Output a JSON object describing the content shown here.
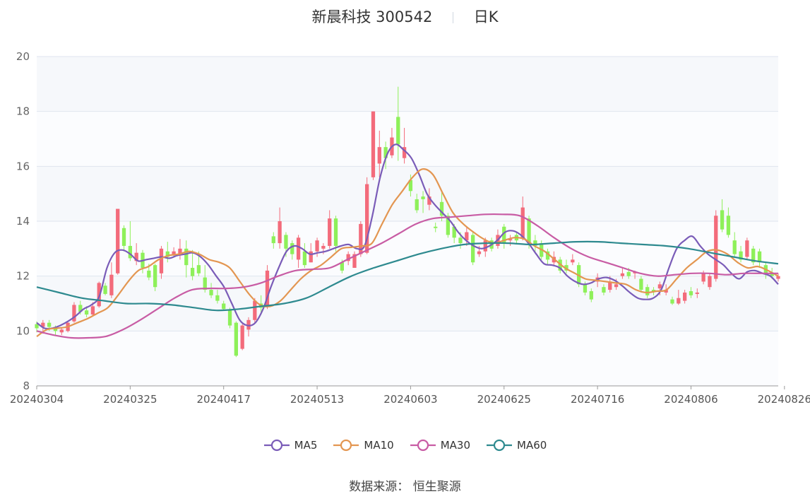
{
  "header": {
    "title": "新晨科技 300542",
    "period": "日K"
  },
  "source": "数据来源： 恒生聚源",
  "chart_data": {
    "type": "candlestick",
    "title": "新晨科技 300542",
    "ylim": [
      8,
      20
    ],
    "y_ticks": [
      8,
      10,
      12,
      14,
      16,
      18,
      20
    ],
    "x_ticks": [
      {
        "i": 0,
        "label": "20240304"
      },
      {
        "i": 15,
        "label": "20240325"
      },
      {
        "i": 30,
        "label": "20240417"
      },
      {
        "i": 45,
        "label": "20240513"
      },
      {
        "i": 60,
        "label": "20240603"
      },
      {
        "i": 75,
        "label": "20240625"
      },
      {
        "i": 90,
        "label": "20240716"
      },
      {
        "i": 105,
        "label": "20240806"
      },
      {
        "i": 120,
        "label": "20240826"
      }
    ],
    "grid": true,
    "legend_position": "bottom",
    "colors": {
      "up": "#f36b7b",
      "down": "#8ef05a",
      "plot_bg": "#f6f8fb",
      "grid": "#dfe5ef"
    },
    "candles": [
      [
        10.25,
        10.1,
        10.35,
        9.95
      ],
      [
        10.15,
        10.3,
        10.4,
        9.9
      ],
      [
        10.3,
        10.15,
        10.4,
        10.0
      ],
      [
        10.15,
        10.0,
        10.2,
        9.85
      ],
      [
        9.95,
        10.05,
        10.1,
        9.85
      ],
      [
        10.0,
        10.3,
        10.35,
        9.95
      ],
      [
        10.35,
        10.95,
        11.05,
        10.3
      ],
      [
        10.95,
        10.7,
        11.1,
        10.6
      ],
      [
        10.75,
        10.6,
        10.9,
        10.5
      ],
      [
        10.6,
        10.9,
        11.05,
        10.55
      ],
      [
        10.9,
        11.75,
        11.8,
        10.85
      ],
      [
        11.65,
        11.35,
        11.75,
        11.3
      ],
      [
        11.3,
        12.05,
        12.5,
        11.2
      ],
      [
        12.1,
        14.45,
        14.45,
        12.05
      ],
      [
        13.75,
        13.1,
        13.85,
        12.9
      ],
      [
        13.1,
        12.65,
        14.0,
        12.55
      ],
      [
        12.55,
        12.85,
        13.2,
        12.4
      ],
      [
        12.85,
        12.3,
        12.95,
        12.1
      ],
      [
        12.2,
        11.95,
        12.45,
        11.85
      ],
      [
        12.4,
        11.6,
        12.45,
        11.45
      ],
      [
        12.1,
        13.0,
        13.1,
        11.9
      ],
      [
        12.9,
        12.7,
        13.25,
        12.5
      ],
      [
        12.8,
        12.9,
        13.05,
        12.7
      ],
      [
        12.75,
        13.0,
        13.35,
        12.6
      ],
      [
        13.0,
        12.4,
        13.3,
        11.95
      ],
      [
        12.3,
        12.0,
        12.95,
        11.85
      ],
      [
        12.4,
        12.1,
        12.9,
        12.0
      ],
      [
        11.95,
        11.5,
        12.4,
        11.4
      ],
      [
        11.5,
        11.3,
        11.75,
        11.2
      ],
      [
        11.3,
        11.1,
        11.5,
        11.0
      ],
      [
        11.0,
        10.8,
        11.1,
        10.75
      ],
      [
        10.75,
        10.2,
        10.85,
        10.1
      ],
      [
        10.3,
        9.1,
        10.35,
        9.05
      ],
      [
        9.35,
        10.2,
        10.25,
        9.3
      ],
      [
        10.05,
        10.4,
        10.5,
        9.8
      ],
      [
        10.4,
        11.1,
        11.2,
        10.3
      ],
      [
        11.0,
        10.85,
        11.3,
        10.6
      ],
      [
        10.9,
        12.2,
        12.4,
        10.8
      ],
      [
        13.45,
        13.2,
        13.6,
        13.0
      ],
      [
        13.2,
        14.0,
        14.5,
        13.0
      ],
      [
        13.5,
        13.0,
        13.6,
        12.7
      ],
      [
        13.2,
        12.8,
        13.3,
        12.6
      ],
      [
        12.6,
        13.4,
        13.5,
        12.3
      ],
      [
        12.9,
        12.4,
        13.2,
        12.3
      ],
      [
        12.5,
        12.9,
        13.2,
        12.5
      ],
      [
        12.9,
        13.3,
        13.4,
        12.7
      ],
      [
        13.0,
        13.1,
        13.2,
        12.8
      ],
      [
        13.1,
        14.1,
        14.4,
        13.0
      ],
      [
        14.1,
        13.1,
        14.2,
        12.9
      ],
      [
        12.5,
        12.2,
        12.6,
        12.1
      ],
      [
        12.55,
        12.8,
        12.9,
        12.4
      ],
      [
        12.3,
        12.8,
        12.9,
        12.3
      ],
      [
        12.8,
        13.9,
        14.0,
        12.7
      ],
      [
        12.85,
        15.35,
        15.6,
        12.8
      ],
      [
        15.6,
        18.0,
        18.0,
        15.5
      ],
      [
        16.1,
        16.7,
        17.3,
        15.6
      ],
      [
        16.7,
        16.3,
        16.9,
        15.9
      ],
      [
        16.4,
        17.05,
        17.4,
        16.3
      ],
      [
        17.8,
        16.8,
        18.9,
        16.2
      ],
      [
        16.3,
        16.7,
        17.4,
        16.1
      ],
      [
        15.5,
        15.1,
        15.7,
        14.9
      ],
      [
        14.8,
        14.4,
        15.0,
        14.3
      ],
      [
        14.9,
        14.8,
        15.1,
        14.3
      ],
      [
        14.6,
        14.9,
        15.2,
        14.4
      ],
      [
        13.8,
        13.75,
        13.95,
        13.6
      ],
      [
        14.7,
        14.2,
        15.1,
        14.0
      ],
      [
        14.2,
        13.5,
        14.3,
        13.4
      ],
      [
        13.8,
        13.4,
        13.9,
        13.2
      ],
      [
        13.4,
        13.2,
        13.6,
        13.0
      ],
      [
        13.3,
        13.6,
        13.8,
        13.1
      ],
      [
        13.5,
        12.5,
        13.6,
        12.4
      ],
      [
        12.8,
        12.9,
        13.1,
        12.7
      ],
      [
        12.9,
        13.3,
        13.4,
        12.7
      ],
      [
        13.3,
        13.0,
        13.4,
        12.9
      ],
      [
        13.1,
        13.5,
        13.7,
        13.0
      ],
      [
        13.8,
        13.2,
        13.9,
        13.0
      ],
      [
        13.3,
        13.35,
        13.5,
        13.1
      ],
      [
        13.5,
        13.3,
        13.6,
        13.2
      ],
      [
        13.4,
        14.5,
        14.9,
        13.3
      ],
      [
        14.1,
        13.2,
        14.2,
        13.0
      ],
      [
        13.3,
        13.1,
        13.5,
        12.9
      ],
      [
        13.2,
        12.7,
        13.3,
        12.6
      ],
      [
        12.9,
        12.6,
        13.0,
        12.4
      ],
      [
        12.5,
        12.7,
        12.9,
        12.4
      ],
      [
        12.6,
        12.2,
        12.7,
        12.1
      ],
      [
        12.4,
        12.2,
        12.6,
        12.1
      ],
      [
        12.5,
        12.6,
        12.8,
        12.4
      ],
      [
        12.4,
        11.7,
        12.5,
        11.6
      ],
      [
        11.7,
        11.4,
        11.8,
        11.3
      ],
      [
        11.45,
        11.15,
        11.55,
        11.05
      ],
      [
        11.8,
        11.95,
        12.1,
        11.6
      ],
      [
        11.6,
        11.4,
        11.7,
        11.3
      ],
      [
        11.5,
        11.8,
        12.0,
        11.4
      ],
      [
        11.6,
        11.7,
        11.9,
        11.5
      ],
      [
        12.0,
        12.1,
        12.3,
        11.9
      ],
      [
        12.15,
        12.0,
        12.3,
        11.9
      ],
      [
        12.1,
        12.15,
        12.2,
        11.9
      ],
      [
        11.9,
        11.5,
        12.0,
        11.4
      ],
      [
        11.6,
        11.3,
        11.7,
        11.2
      ],
      [
        11.5,
        11.45,
        11.6,
        11.3
      ],
      [
        11.55,
        11.7,
        11.8,
        11.3
      ],
      [
        11.4,
        11.5,
        11.7,
        11.3
      ],
      [
        11.15,
        11.0,
        11.25,
        10.95
      ],
      [
        11.0,
        11.2,
        11.5,
        10.95
      ],
      [
        11.1,
        11.4,
        11.5,
        11.0
      ],
      [
        11.45,
        11.3,
        11.6,
        11.2
      ],
      [
        11.35,
        11.4,
        11.55,
        11.2
      ],
      [
        11.8,
        12.1,
        12.2,
        11.7
      ],
      [
        11.6,
        12.0,
        12.1,
        11.5
      ],
      [
        11.9,
        14.2,
        14.4,
        11.8
      ],
      [
        14.4,
        13.7,
        14.8,
        13.6
      ],
      [
        14.2,
        13.5,
        14.5,
        13.4
      ],
      [
        13.3,
        12.8,
        13.6,
        12.7
      ],
      [
        12.9,
        12.6,
        13.1,
        12.5
      ],
      [
        12.7,
        13.3,
        13.4,
        12.6
      ],
      [
        13.0,
        12.5,
        13.1,
        12.4
      ],
      [
        12.9,
        12.5,
        13.0,
        12.3
      ],
      [
        12.4,
        12.1,
        12.5,
        11.9
      ],
      [
        12.1,
        12.0,
        12.3,
        11.9
      ],
      [
        11.9,
        12.0,
        12.1,
        11.8
      ]
    ],
    "series": [
      {
        "name": "MA5",
        "color": "#7a5cb8",
        "values": [
          10.3,
          10.1,
          10.1,
          10.2,
          10.35,
          10.55,
          10.8,
          10.95,
          11.25,
          12.3,
          12.85,
          12.95,
          12.8,
          12.55,
          12.6,
          12.65,
          12.7,
          12.65,
          12.75,
          12.8,
          12.85,
          12.7,
          12.4,
          12.0,
          11.6,
          11.0,
          10.4,
          10.2,
          10.3,
          10.8,
          11.6,
          12.3,
          12.9,
          13.1,
          13.0,
          12.8,
          12.85,
          12.9,
          13.0,
          13.1,
          13.15,
          13.0,
          13.1,
          14.2,
          15.6,
          16.5,
          16.8,
          16.6,
          16.3,
          15.7,
          15.0,
          14.6,
          14.3,
          14.0,
          13.6,
          13.3,
          13.1,
          13.0,
          13.1,
          13.3,
          13.6,
          13.65,
          13.5,
          13.2,
          12.8,
          12.45,
          12.4,
          12.3,
          12.0,
          11.8,
          11.7,
          11.75,
          11.9,
          11.95,
          11.85,
          11.65,
          11.4,
          11.2,
          11.15,
          11.2,
          11.5,
          12.3,
          13.0,
          13.3,
          13.45,
          13.1,
          12.8,
          12.6,
          12.4,
          12.1,
          11.9,
          12.15,
          12.2,
          12.1,
          12.0,
          11.7
        ]
      },
      {
        "name": "MA10",
        "color": "#e39651",
        "values": [
          9.8,
          10.05,
          10.1,
          10.15,
          10.3,
          10.45,
          10.65,
          10.85,
          11.3,
          11.8,
          12.2,
          12.35,
          12.6,
          12.75,
          12.8,
          12.9,
          12.8,
          12.6,
          12.5,
          12.3,
          11.8,
          11.3,
          10.95,
          10.9,
          11.1,
          11.5,
          11.9,
          12.2,
          12.4,
          12.7,
          13.0,
          13.05,
          13.1,
          13.2,
          13.9,
          14.6,
          15.1,
          15.6,
          15.9,
          15.7,
          15.0,
          14.3,
          13.9,
          13.6,
          13.35,
          13.2,
          13.3,
          13.4,
          13.35,
          13.1,
          12.9,
          12.6,
          12.3,
          12.1,
          11.9,
          11.85,
          11.8,
          11.75,
          11.7,
          11.5,
          11.4,
          11.45,
          11.5,
          11.9,
          12.3,
          12.6,
          12.9,
          12.95,
          12.8,
          12.5,
          12.3,
          12.35,
          12.2,
          12.0
        ]
      },
      {
        "name": "MA30",
        "color": "#c85ca4",
        "values": [
          10.0,
          9.85,
          9.75,
          9.75,
          9.8,
          10.05,
          10.4,
          10.8,
          11.2,
          11.5,
          11.55,
          11.55,
          11.6,
          11.75,
          12.0,
          12.2,
          12.25,
          12.3,
          12.6,
          12.9,
          13.2,
          13.55,
          13.9,
          14.1,
          14.15,
          14.2,
          14.25,
          14.25,
          14.2,
          13.85,
          13.4,
          13.0,
          12.7,
          12.5,
          12.3,
          12.1,
          12.0,
          12.05,
          12.1,
          12.1,
          12.05,
          12.1,
          12.1,
          12.1
        ]
      },
      {
        "name": "MA60",
        "color": "#2e8a8f",
        "values": [
          11.6,
          11.4,
          11.2,
          11.1,
          11.0,
          11.0,
          10.95,
          10.85,
          10.75,
          10.8,
          10.9,
          11.0,
          11.2,
          11.6,
          12.0,
          12.3,
          12.55,
          12.8,
          13.0,
          13.15,
          13.2,
          13.2,
          13.15,
          13.2,
          13.25,
          13.25,
          13.2,
          13.15,
          13.1,
          13.0,
          12.85,
          12.7,
          12.55,
          12.45
        ]
      }
    ]
  }
}
